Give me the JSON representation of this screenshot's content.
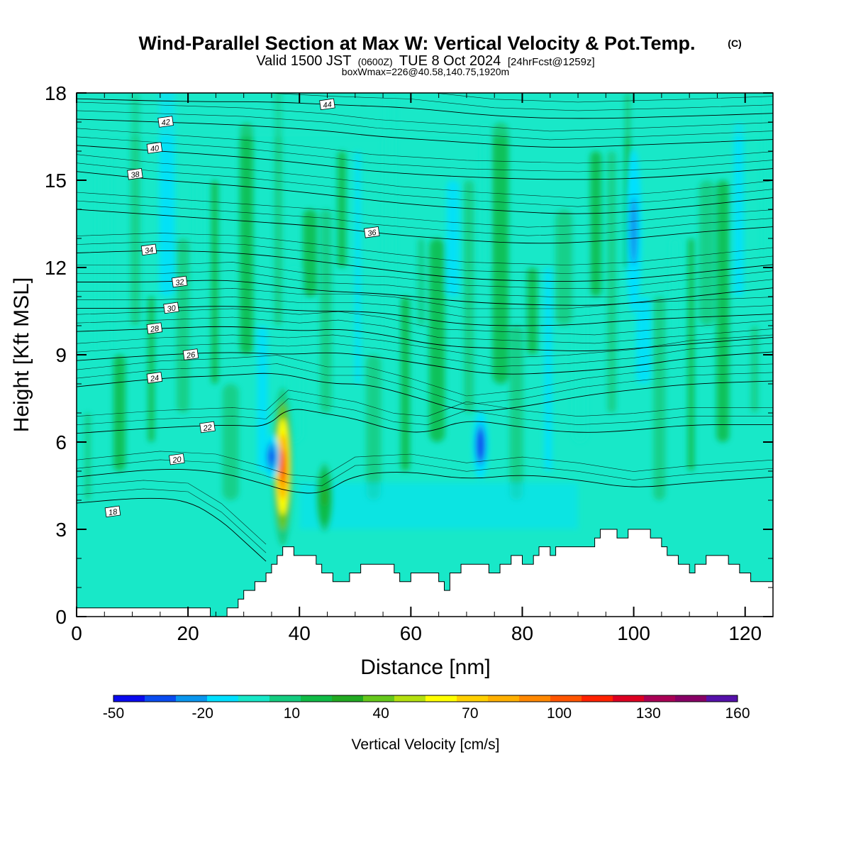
{
  "chart_data": {
    "type": "heatmap",
    "title": "Wind-Parallel Section at Max W: Vertical Velocity & Pot.Temp.",
    "title_mark": "(C)",
    "subtitle": {
      "prefix": "Valid 1500 JST",
      "utc": "(0600Z)",
      "date": "TUE 8 Oct 2024",
      "forecast": "[24hrFcst@1259z]"
    },
    "subtitle2": "boxWmax=226@40.58,140.75,1920m",
    "xlabel": "Distance [nm]",
    "ylabel": "Height [Kft MSL]",
    "xlim": [
      0,
      125
    ],
    "ylim": [
      0,
      18
    ],
    "x_ticks": [
      "0",
      "20",
      "40",
      "60",
      "80",
      "100",
      "120"
    ],
    "y_ticks": [
      "0",
      "3",
      "6",
      "9",
      "12",
      "15",
      "18"
    ],
    "colorbar": {
      "label": "Vertical Velocity [cm/s]",
      "ticks": [
        "-50",
        "-20",
        "10",
        "40",
        "70",
        "100",
        "130",
        "160"
      ],
      "colors": [
        "#0a0aee",
        "#0a4cf0",
        "#0a96ee",
        "#00e0ff",
        "#18e8c8",
        "#14cc80",
        "#10bb46",
        "#22aa22",
        "#66c81c",
        "#b4e010",
        "#ffff00",
        "#ffd000",
        "#ffb000",
        "#ff8800",
        "#ff5500",
        "#ff2200",
        "#dd0022",
        "#aa0055",
        "#880066",
        "#5511aa"
      ]
    },
    "field_features": [
      {
        "kind": "updraft-core",
        "x": 37,
        "y_range": [
          2.5,
          7.8
        ],
        "peak_cm_s": 130
      },
      {
        "kind": "downdraft",
        "x": 35,
        "y_range": [
          4.8,
          6.2
        ],
        "peak_cm_s": -40
      },
      {
        "kind": "downdraft",
        "x": 72.5,
        "y_range": [
          4.8,
          7.0
        ],
        "peak_cm_s": -45
      },
      {
        "kind": "downdraft",
        "x": 100,
        "y_range": [
          10.5,
          16.0
        ],
        "peak_cm_s": -30
      },
      {
        "kind": "updraft",
        "x": 44.5,
        "y_range": [
          3.0,
          5.2
        ],
        "peak_cm_s": 30
      }
    ],
    "terrain": [
      [
        0,
        0.3
      ],
      [
        24,
        0.3
      ],
      [
        24,
        0
      ],
      [
        27,
        0
      ],
      [
        27,
        0.3
      ],
      [
        29,
        0.3
      ],
      [
        29,
        0.6
      ],
      [
        30,
        0.6
      ],
      [
        30,
        0.9
      ],
      [
        32,
        0.9
      ],
      [
        32,
        1.2
      ],
      [
        34,
        1.2
      ],
      [
        34,
        1.5
      ],
      [
        35,
        1.5
      ],
      [
        35,
        1.8
      ],
      [
        36,
        1.8
      ],
      [
        36,
        2.1
      ],
      [
        37,
        2.1
      ],
      [
        37,
        2.4
      ],
      [
        39,
        2.4
      ],
      [
        39,
        2.1
      ],
      [
        43,
        2.1
      ],
      [
        43,
        1.8
      ],
      [
        44,
        1.8
      ],
      [
        44,
        1.5
      ],
      [
        46,
        1.5
      ],
      [
        46,
        1.2
      ],
      [
        49,
        1.2
      ],
      [
        49,
        1.5
      ],
      [
        51,
        1.5
      ],
      [
        51,
        1.8
      ],
      [
        57,
        1.8
      ],
      [
        57,
        1.5
      ],
      [
        58,
        1.5
      ],
      [
        58,
        1.2
      ],
      [
        60,
        1.2
      ],
      [
        60,
        1.5
      ],
      [
        65,
        1.5
      ],
      [
        65,
        1.2
      ],
      [
        66,
        1.2
      ],
      [
        66,
        0.9
      ],
      [
        67,
        0.9
      ],
      [
        67,
        1.5
      ],
      [
        69,
        1.5
      ],
      [
        69,
        1.8
      ],
      [
        74,
        1.8
      ],
      [
        74,
        1.5
      ],
      [
        76,
        1.5
      ],
      [
        76,
        1.8
      ],
      [
        78,
        1.8
      ],
      [
        78,
        2.1
      ],
      [
        80,
        2.1
      ],
      [
        80,
        1.8
      ],
      [
        82,
        1.8
      ],
      [
        82,
        2.1
      ],
      [
        83,
        2.1
      ],
      [
        83,
        2.4
      ],
      [
        85,
        2.4
      ],
      [
        85,
        2.1
      ],
      [
        86,
        2.1
      ],
      [
        86,
        2.4
      ],
      [
        93,
        2.4
      ],
      [
        93,
        2.7
      ],
      [
        94,
        2.7
      ],
      [
        94,
        3.0
      ],
      [
        97,
        3.0
      ],
      [
        97,
        2.7
      ],
      [
        99,
        2.7
      ],
      [
        99,
        3.0
      ],
      [
        103,
        3.0
      ],
      [
        103,
        2.7
      ],
      [
        105,
        2.7
      ],
      [
        105,
        2.4
      ],
      [
        106,
        2.4
      ],
      [
        106,
        2.1
      ],
      [
        108,
        2.1
      ],
      [
        108,
        1.8
      ],
      [
        110,
        1.8
      ],
      [
        110,
        1.5
      ],
      [
        111,
        1.5
      ],
      [
        111,
        1.8
      ],
      [
        113,
        1.8
      ],
      [
        113,
        2.1
      ],
      [
        117,
        2.1
      ],
      [
        117,
        1.8
      ],
      [
        119,
        1.8
      ],
      [
        119,
        1.5
      ],
      [
        121,
        1.5
      ],
      [
        121,
        1.2
      ],
      [
        125,
        1.2
      ]
    ],
    "theta_contours": [
      {
        "label": "18",
        "level": 18,
        "label_pos": [
          6.5,
          3.6
        ],
        "pts": [
          [
            0,
            3.9
          ],
          [
            12,
            4.1
          ],
          [
            20,
            4.0
          ],
          [
            26,
            3.3
          ],
          [
            30,
            2.6
          ],
          [
            34,
            1.9
          ]
        ]
      },
      {
        "label": "20",
        "level": 20,
        "label_pos": [
          18,
          5.4
        ],
        "pts": [
          [
            0,
            4.8
          ],
          [
            15,
            5.1
          ],
          [
            25,
            5.0
          ],
          [
            33,
            4.6
          ],
          [
            38,
            4.3
          ],
          [
            44,
            4.2
          ],
          [
            50,
            4.9
          ],
          [
            60,
            5.0
          ],
          [
            70,
            4.7
          ],
          [
            80,
            4.9
          ],
          [
            90,
            4.7
          ],
          [
            100,
            4.4
          ],
          [
            110,
            4.6
          ],
          [
            125,
            4.8
          ]
        ]
      },
      {
        "label": "22",
        "level": 22,
        "label_pos": [
          23.5,
          6.5
        ],
        "pts": [
          [
            0,
            6.3
          ],
          [
            15,
            6.5
          ],
          [
            28,
            6.6
          ],
          [
            34,
            6.5
          ],
          [
            38,
            7.2
          ],
          [
            44,
            7.0
          ],
          [
            50,
            6.8
          ],
          [
            57,
            6.4
          ],
          [
            63,
            6.3
          ],
          [
            70,
            6.8
          ],
          [
            80,
            6.5
          ],
          [
            90,
            6.3
          ],
          [
            100,
            6.4
          ],
          [
            110,
            6.6
          ],
          [
            125,
            6.6
          ]
        ]
      },
      {
        "label": "24",
        "level": 24,
        "label_pos": [
          14,
          8.2
        ],
        "pts": [
          [
            0,
            7.9
          ],
          [
            15,
            8.2
          ],
          [
            28,
            8.3
          ],
          [
            36,
            8.4
          ],
          [
            45,
            8.0
          ],
          [
            52,
            8.0
          ],
          [
            60,
            7.6
          ],
          [
            70,
            7.0
          ],
          [
            80,
            7.2
          ],
          [
            91,
            7.6
          ],
          [
            100,
            7.8
          ],
          [
            110,
            8.0
          ],
          [
            125,
            8.1
          ]
        ]
      },
      {
        "label": "26",
        "level": 26,
        "label_pos": [
          20.5,
          9.0
        ],
        "pts": [
          [
            0,
            8.8
          ],
          [
            15,
            9.0
          ],
          [
            28,
            9.1
          ],
          [
            38,
            9.0
          ],
          [
            46,
            9.1
          ],
          [
            55,
            8.9
          ],
          [
            65,
            8.6
          ],
          [
            75,
            8.3
          ],
          [
            88,
            8.4
          ],
          [
            100,
            8.6
          ],
          [
            110,
            8.9
          ],
          [
            125,
            9.1
          ]
        ]
      },
      {
        "label": "28",
        "level": 28,
        "label_pos": [
          14,
          9.9
        ],
        "pts": [
          [
            0,
            9.8
          ],
          [
            15,
            9.9
          ],
          [
            28,
            10.0
          ],
          [
            40,
            9.8
          ],
          [
            47,
            9.9
          ],
          [
            55,
            9.7
          ],
          [
            65,
            9.3
          ],
          [
            78,
            9.2
          ],
          [
            93,
            9.1
          ],
          [
            105,
            9.3
          ],
          [
            125,
            9.6
          ]
        ]
      },
      {
        "label": "30",
        "level": 30,
        "label_pos": [
          17,
          10.6
        ],
        "pts": [
          [
            0,
            10.6
          ],
          [
            15,
            10.6
          ],
          [
            28,
            10.7
          ],
          [
            40,
            10.5
          ],
          [
            50,
            10.5
          ],
          [
            57,
            10.4
          ],
          [
            70,
            10.0
          ],
          [
            88,
            10.0
          ],
          [
            100,
            10.2
          ],
          [
            125,
            10.4
          ]
        ]
      },
      {
        "label": "32",
        "level": 32,
        "label_pos": [
          18.5,
          11.5
        ],
        "pts": [
          [
            0,
            11.5
          ],
          [
            15,
            11.5
          ],
          [
            28,
            11.6
          ],
          [
            42,
            11.2
          ],
          [
            56,
            11.1
          ],
          [
            70,
            10.8
          ],
          [
            85,
            10.7
          ],
          [
            96,
            10.7
          ],
          [
            110,
            11.0
          ],
          [
            125,
            11.3
          ]
        ]
      },
      {
        "label": "34",
        "level": 34,
        "label_pos": [
          13,
          12.6
        ],
        "pts": [
          [
            0,
            12.5
          ],
          [
            15,
            12.6
          ],
          [
            30,
            12.5
          ],
          [
            44,
            12.2
          ],
          [
            56,
            11.9
          ],
          [
            70,
            11.6
          ],
          [
            88,
            11.5
          ],
          [
            100,
            11.6
          ],
          [
            125,
            12.1
          ]
        ]
      },
      {
        "label": "36",
        "level": 36,
        "label_pos": [
          53,
          13.2
        ],
        "pts": [
          [
            0,
            14.0
          ],
          [
            15,
            13.8
          ],
          [
            30,
            13.6
          ],
          [
            45,
            13.4
          ],
          [
            53,
            13.2
          ],
          [
            65,
            13.0
          ],
          [
            81,
            12.8
          ],
          [
            95,
            12.9
          ],
          [
            110,
            13.2
          ],
          [
            125,
            13.4
          ]
        ]
      },
      {
        "label": "38",
        "level": 38,
        "label_pos": [
          10.5,
          15.2
        ],
        "pts": [
          [
            0,
            15.3
          ],
          [
            15,
            15.0
          ],
          [
            30,
            14.8
          ],
          [
            45,
            14.5
          ],
          [
            58,
            14.2
          ],
          [
            72,
            14.0
          ],
          [
            90,
            13.8
          ],
          [
            105,
            14.0
          ],
          [
            125,
            14.4
          ]
        ]
      },
      {
        "label": "40",
        "level": 40,
        "label_pos": [
          14,
          16.1
        ],
        "pts": [
          [
            0,
            16.2
          ],
          [
            15,
            16.0
          ],
          [
            30,
            15.8
          ],
          [
            45,
            15.5
          ],
          [
            53,
            15.3
          ],
          [
            70,
            15.1
          ],
          [
            90,
            15.0
          ],
          [
            105,
            15.1
          ],
          [
            125,
            15.4
          ]
        ]
      },
      {
        "label": "42",
        "level": 42,
        "label_pos": [
          16,
          17.0
        ],
        "pts": [
          [
            0,
            17.1
          ],
          [
            15,
            17.0
          ],
          [
            30,
            16.9
          ],
          [
            45,
            16.7
          ],
          [
            54,
            16.5
          ],
          [
            70,
            16.3
          ],
          [
            85,
            16.1
          ],
          [
            100,
            16.2
          ],
          [
            125,
            16.4
          ]
        ]
      },
      {
        "label": "44",
        "level": 44,
        "label_pos": [
          45,
          17.6
        ],
        "pts": [
          [
            0,
            17.8
          ],
          [
            20,
            17.7
          ],
          [
            35,
            17.7
          ],
          [
            45,
            17.6
          ],
          [
            60,
            17.5
          ],
          [
            75,
            17.2
          ],
          [
            90,
            17.1
          ],
          [
            110,
            17.2
          ],
          [
            125,
            17.3
          ]
        ]
      }
    ]
  }
}
